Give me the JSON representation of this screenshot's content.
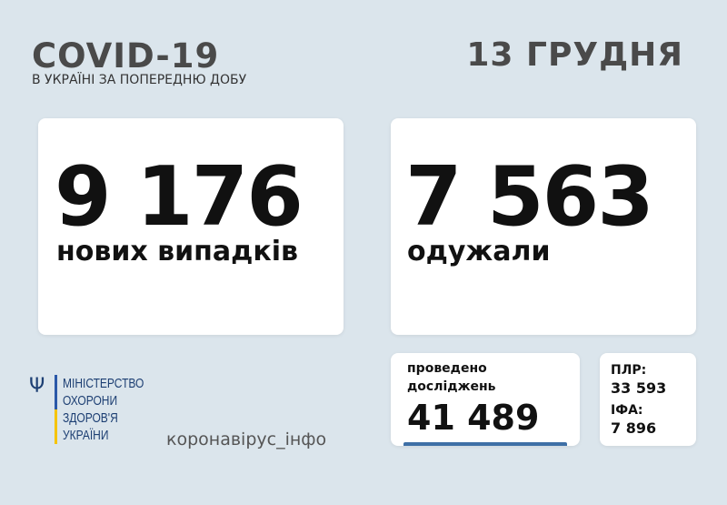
{
  "header": {
    "title": "COVID-19",
    "subtitle": "В УКРАЇНІ ЗА ПОПЕРЕДНЮ ДОБУ",
    "date": "13 ГРУДНЯ"
  },
  "cases": {
    "value": "9 176",
    "label": "нових випадків"
  },
  "recovered": {
    "value": "7 563",
    "label": "одужали"
  },
  "tests": {
    "label_line1": "проведено",
    "label_line2": "досліджень",
    "value": "41 489",
    "accent": "#3e6fa6"
  },
  "tests_breakdown": {
    "pcr_label": "ПЛР:",
    "pcr_value": "33 593",
    "ifa_label": "ІФА:",
    "ifa_value": "7 896"
  },
  "ministry": {
    "lines": [
      "МІНІСТЕРСТВО",
      "ОХОРОНИ",
      "ЗДОРОВ'Я",
      "УКРАЇНИ"
    ],
    "icon": "tryzub-icon"
  },
  "site": "коронавірус_інфо"
}
